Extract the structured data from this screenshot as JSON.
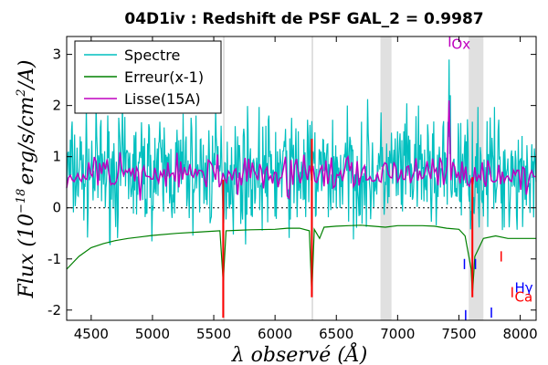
{
  "chart_data": {
    "type": "line",
    "title": "04D1iv : Redshift de PSF GAL_2 = 0.9987",
    "xlabel": "λ observé (Å)",
    "ylabel": "Flux (10^-18 erg/s/cm^2/A)",
    "ylabel_main": "Flux (10",
    "ylabel_exp": "−18",
    "ylabel_rest": "erg/s/cm",
    "ylabel_exp2": "2",
    "ylabel_end": "/A)",
    "xlim": [
      4300,
      8130
    ],
    "ylim": [
      -2.2,
      3.35
    ],
    "xticks": [
      4500,
      5000,
      5500,
      6000,
      6500,
      7000,
      7500,
      8000
    ],
    "yticks": [
      -2,
      -1,
      0,
      1,
      2,
      3
    ],
    "xtick_labels": [
      "4500",
      "5000",
      "5500",
      "6000",
      "6500",
      "7000",
      "7500",
      "8000"
    ],
    "ytick_labels": [
      "-2",
      "-1",
      "0",
      "1",
      "2",
      "3"
    ],
    "zero_line": true,
    "legend": {
      "placement": "upper-left",
      "entries": [
        {
          "label": "Spectre",
          "color": "#00bfbf"
        },
        {
          "label": "Erreur(x-1)",
          "color": "#008000"
        },
        {
          "label": "Lisse(15A)",
          "color": "#bf00bf"
        }
      ]
    },
    "shaded_regions": [
      [
        5575,
        5585
      ],
      [
        6297,
        6307
      ],
      [
        6860,
        6950
      ],
      [
        7580,
        7700
      ]
    ],
    "sky_lines": [
      {
        "x": 5577,
        "y0": -2.15,
        "y1": 0.55
      },
      {
        "x": 6300,
        "y0": -1.75,
        "y1": 1.35
      },
      {
        "x": 7610,
        "y0": -1.75,
        "y1": 0.6
      }
    ],
    "line_markers": [
      {
        "x": 7425,
        "y0": 3.15,
        "y1": 3.35,
        "color": "#bf00bf"
      },
      {
        "x": 7545,
        "y0": -1.0,
        "y1": -1.2,
        "color": "#0000ff"
      },
      {
        "x": 7635,
        "y0": -1.0,
        "y1": -1.2,
        "color": "#0000ff"
      },
      {
        "x": 7555,
        "y0": -2.0,
        "y1": -2.2,
        "color": "#0000ff"
      },
      {
        "x": 7765,
        "y0": -1.95,
        "y1": -2.15,
        "color": "#0000ff"
      },
      {
        "x": 7845,
        "y0": -0.85,
        "y1": -1.05,
        "color": "#ff0000"
      },
      {
        "x": 7935,
        "y0": -1.55,
        "y1": -1.75,
        "color": "#ff0000"
      }
    ],
    "line_labels": [
      {
        "text": "Ox",
        "x": 7440,
        "y": 3.22,
        "color": "#bf00bf"
      },
      {
        "text": "Hγ",
        "x": 7955,
        "y": -1.55,
        "color": "#0000ff"
      },
      {
        "text": "Ca",
        "x": 7955,
        "y": -1.73,
        "color": "#ff0000"
      }
    ],
    "series": [
      {
        "name": "Erreur(x-1)",
        "color": "#008000",
        "x": [
          4300,
          4400,
          4500,
          4600,
          4700,
          4800,
          4900,
          5000,
          5200,
          5400,
          5550,
          5577,
          5600,
          5800,
          6000,
          6100,
          6200,
          6280,
          6300,
          6320,
          6363,
          6400,
          6500,
          6600,
          6700,
          6800,
          6900,
          7000,
          7100,
          7200,
          7300,
          7400,
          7500,
          7550,
          7600,
          7610,
          7630,
          7650,
          7700,
          7800,
          7900,
          8000,
          8130
        ],
        "y": [
          -1.2,
          -0.95,
          -0.78,
          -0.7,
          -0.64,
          -0.6,
          -0.57,
          -0.54,
          -0.5,
          -0.47,
          -0.45,
          -1.45,
          -0.45,
          -0.43,
          -0.42,
          -0.4,
          -0.4,
          -0.45,
          -1.7,
          -0.42,
          -0.6,
          -0.38,
          -0.36,
          -0.35,
          -0.34,
          -0.36,
          -0.38,
          -0.35,
          -0.35,
          -0.35,
          -0.36,
          -0.4,
          -0.42,
          -0.55,
          -1.2,
          -1.7,
          -0.95,
          -0.85,
          -0.6,
          -0.55,
          -0.6,
          -0.6,
          -0.6
        ]
      },
      {
        "name": "Spectre",
        "color": "#00bfbf",
        "generated": {
          "x_start": 4300,
          "x_end": 8130,
          "step": 5,
          "seed": 7,
          "baseline": 0.7,
          "noise": 1.1,
          "spikes": [
            [
              7420,
              2.9
            ],
            [
              7430,
              2.2
            ],
            [
              5580,
              -0.3
            ]
          ]
        }
      },
      {
        "name": "Lisse(15A)",
        "color": "#bf00bf",
        "generated": {
          "x_start": 4300,
          "x_end": 8130,
          "step": 15,
          "seed": 11,
          "baseline": 0.65,
          "noise": 0.35,
          "spikes": [
            [
              7420,
              2.1
            ]
          ]
        }
      }
    ]
  }
}
